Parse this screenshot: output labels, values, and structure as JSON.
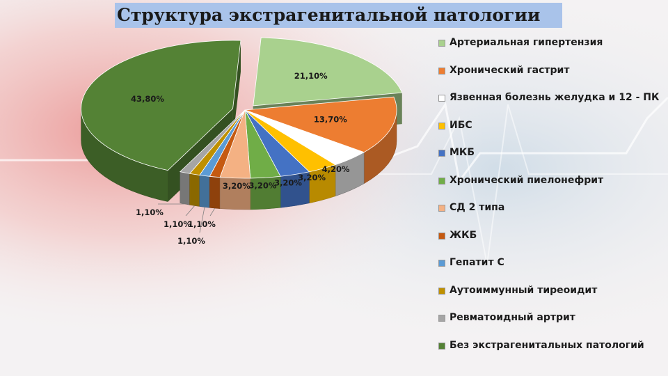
{
  "slide": {
    "title": "Структура экстрагенитальной патологии"
  },
  "chart_data": {
    "type": "pie",
    "title": "",
    "value_format": "percent",
    "legend_position": "right",
    "slices": [
      {
        "name": "Артериальная гипертензия",
        "value": 21.1,
        "label": "21,10%",
        "color": "#a9d18e"
      },
      {
        "name": "Хронический гастрит",
        "value": 13.7,
        "label": "13,70%",
        "color": "#ed7d31"
      },
      {
        "name": "Язвенная болезнь желудка и 12 - ПК",
        "value": 4.2,
        "label": "4,20%",
        "color": "#ffffff"
      },
      {
        "name": "ИБС",
        "value": 3.2,
        "label": "3,20%",
        "color": "#ffc000"
      },
      {
        "name": "МКБ",
        "value": 3.2,
        "label": "3,20%",
        "color": "#4472c4"
      },
      {
        "name": "Хронический пиелонефрит",
        "value": 3.2,
        "label": "3,20%",
        "color": "#70ad47"
      },
      {
        "name": "СД 2 типа",
        "value": 3.2,
        "label": "3,20%",
        "color": "#f4b183"
      },
      {
        "name": "ЖКБ",
        "value": 1.1,
        "label": "1,10%",
        "color": "#c55a11"
      },
      {
        "name": "Гепатит С",
        "value": 1.1,
        "label": "1,10%",
        "color": "#5b9bd5"
      },
      {
        "name": "Аутоиммунный тиреоидит",
        "value": 1.1,
        "label": "1,10%",
        "color": "#bf9000"
      },
      {
        "name": "Ревматоидный артрит",
        "value": 1.1,
        "label": "1,10%",
        "color": "#a5a5a5"
      },
      {
        "name": "Без экстрагенитальных патологий",
        "value": 43.8,
        "label": "43,80%",
        "color": "#548235"
      }
    ]
  }
}
